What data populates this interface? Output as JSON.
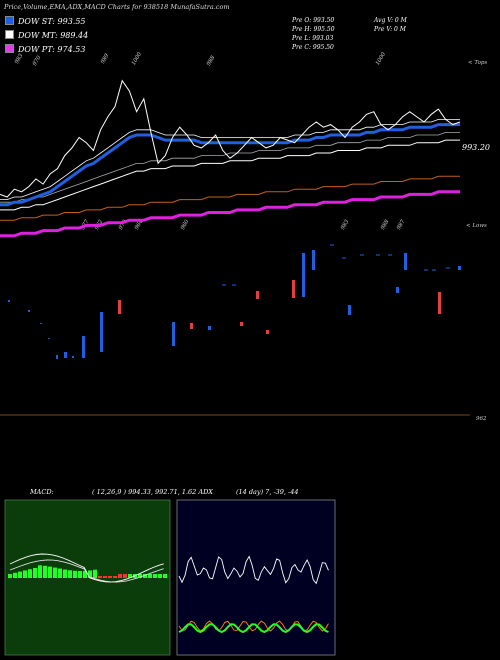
{
  "header": {
    "title": "Price,Volume,EMA,ADX,MACD Charts for 938518 MunafaSutra.com"
  },
  "legend": [
    {
      "label": "DOW ST: 993.55",
      "color": "#1f5fe0"
    },
    {
      "label": "DOW MT: 989.44",
      "color": "#ffffff"
    },
    {
      "label": "DOW PT: 974.53",
      "color": "#e040e0"
    }
  ],
  "ohlc": {
    "open": "Pre  O: 993.50",
    "high": "Pre  H: 995.50",
    "low": "Pre  L: 993.03",
    "close": "Pre  C: 995.50",
    "avgv": "Avg V: 0   M",
    "prev": "Pre  V: 0   M"
  },
  "labels": {
    "tops": "< Tops",
    "lows": "< Lows",
    "last_price": "993.20",
    "axis_bottom": "962",
    "macd": "MACD:",
    "macd_values": "( 12,26,9 ) 994.33,  992.71,  1.62 ADX",
    "adx_values": "(14  day) 7,  -39,  -44"
  },
  "top_labels": [
    "983",
    "970",
    "989",
    "1000",
    "988",
    "1000"
  ],
  "low_labels": [
    "977",
    "962",
    "970",
    "964",
    "960",
    "983",
    "988",
    "987"
  ],
  "chart_data": {
    "type": "line",
    "title": "Price,Volume,EMA,ADX,MACD Charts for 938518 MunafaSutra.com",
    "price": [
      968,
      967,
      970,
      969,
      971,
      974,
      972,
      976,
      978,
      983,
      986,
      990,
      988,
      985,
      993,
      998,
      1002,
      1012,
      1008,
      1000,
      1005,
      992,
      980,
      983,
      990,
      994,
      991,
      987,
      986,
      988,
      991,
      985,
      982,
      984,
      987,
      990,
      988,
      986,
      987,
      990,
      989,
      988,
      991,
      994,
      996,
      994,
      995,
      993,
      990,
      994,
      996,
      999,
      1000,
      995,
      993,
      995,
      998,
      1000,
      998,
      996,
      999,
      1001,
      997,
      995,
      996
    ],
    "ema_short": [
      964,
      964,
      965,
      965,
      966,
      967,
      968,
      969,
      971,
      973,
      975,
      977,
      979,
      980,
      982,
      984,
      986,
      988,
      990,
      991,
      991,
      991,
      990,
      989,
      989,
      989,
      989,
      989,
      988,
      988,
      988,
      988,
      988,
      988,
      988,
      988,
      988,
      988,
      988,
      988,
      988,
      989,
      989,
      989,
      990,
      990,
      991,
      991,
      991,
      991,
      991,
      992,
      992,
      993,
      993,
      993,
      993,
      994,
      994,
      994,
      994,
      995,
      995,
      995,
      995
    ],
    "ema_mid": [
      962,
      962,
      962,
      963,
      963,
      964,
      964,
      965,
      966,
      967,
      968,
      969,
      970,
      971,
      972,
      973,
      974,
      975,
      976,
      977,
      977,
      978,
      978,
      978,
      979,
      979,
      979,
      979,
      980,
      980,
      980,
      980,
      981,
      981,
      981,
      981,
      982,
      982,
      982,
      982,
      983,
      983,
      983,
      983,
      984,
      984,
      984,
      985,
      985,
      985,
      985,
      986,
      986,
      986,
      987,
      987,
      987,
      987,
      988,
      988,
      988,
      988,
      989,
      989,
      989
    ],
    "ema_long": [
      958,
      958,
      958,
      959,
      959,
      959,
      960,
      960,
      960,
      961,
      961,
      961,
      962,
      962,
      962,
      963,
      963,
      963,
      964,
      964,
      964,
      965,
      965,
      965,
      965,
      966,
      966,
      966,
      966,
      967,
      967,
      967,
      967,
      968,
      968,
      968,
      968,
      969,
      969,
      969,
      969,
      970,
      970,
      970,
      970,
      971,
      971,
      971,
      971,
      972,
      972,
      972,
      972,
      973,
      973,
      973,
      973,
      974,
      974,
      974,
      974,
      975,
      975,
      975,
      975
    ],
    "ylim": [
      955,
      1020
    ]
  }
}
